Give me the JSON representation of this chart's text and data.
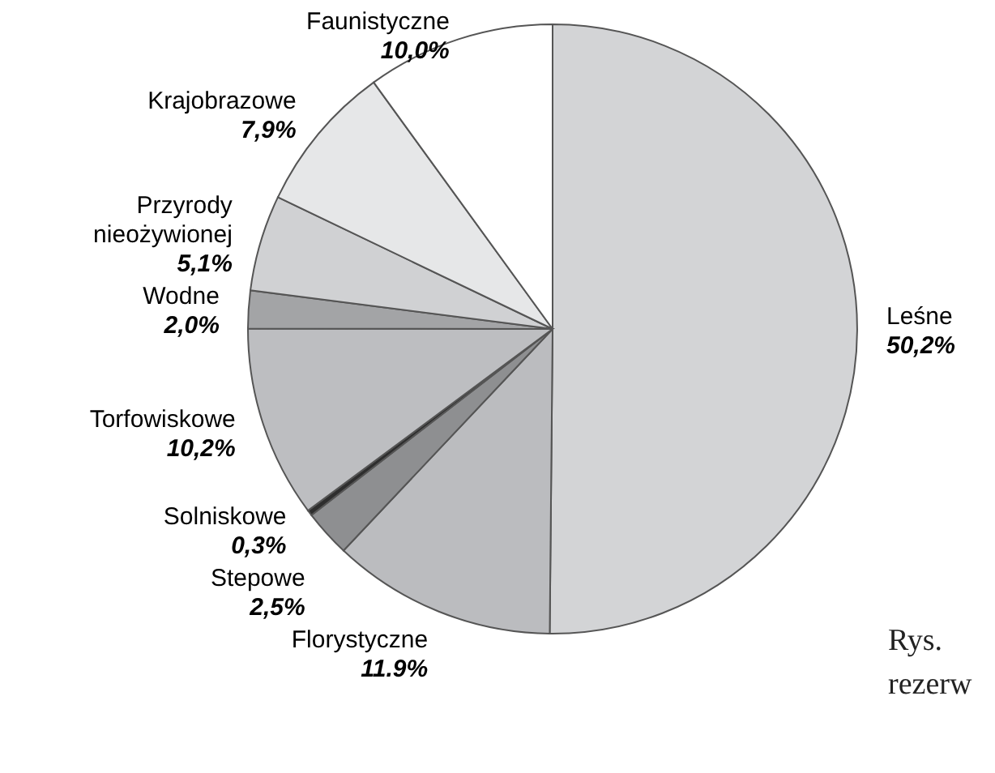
{
  "chart_data": {
    "type": "pie",
    "categories": [
      "Leśne",
      "Florystyczne",
      "Stepowe",
      "Solniskowe",
      "Torfowiskowe",
      "Wodne",
      "Przyrody nieożywionej",
      "Krajobrazowe",
      "Faunistyczne"
    ],
    "values": [
      50.2,
      11.9,
      2.5,
      0.3,
      10.2,
      2.0,
      5.1,
      7.9,
      10.0
    ],
    "value_labels": [
      "50,2%",
      "11.9%",
      "2,5%",
      "0,3%",
      "10,2%",
      "2,0%",
      "5,1%",
      "7,9%",
      "10,0%"
    ],
    "colors": [
      "#d3d4d6",
      "#bbbcbf",
      "#8e8f91",
      "#2e2e2e",
      "#bdbec1",
      "#a3a4a6",
      "#d0d1d3",
      "#e6e7e8",
      "#ffffff"
    ],
    "annotations": [
      "Rys.",
      "rezerw"
    ]
  }
}
